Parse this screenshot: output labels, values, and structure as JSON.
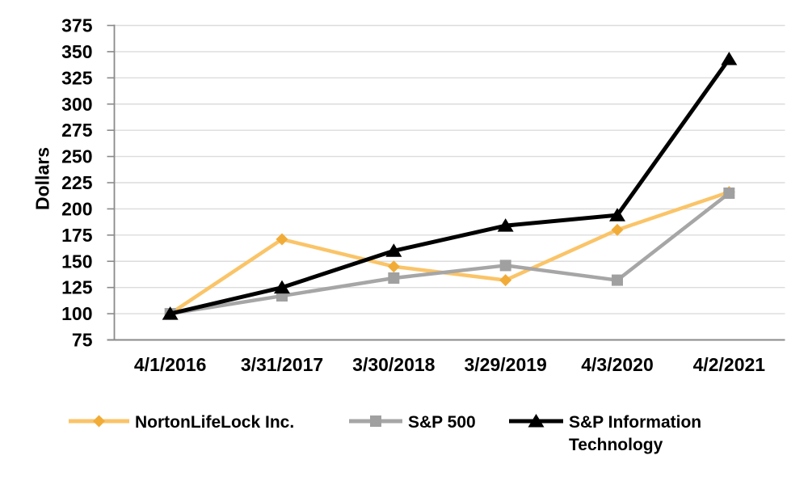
{
  "chart_data": {
    "type": "line",
    "title": "",
    "xlabel": "",
    "ylabel": "Dollars",
    "x_labels": [
      "4/1/2016",
      "3/31/2017",
      "3/30/2018",
      "3/29/2019",
      "4/3/2020",
      "4/2/2021"
    ],
    "y_ticks": [
      75,
      100,
      125,
      150,
      175,
      200,
      225,
      250,
      275,
      300,
      325,
      350,
      375
    ],
    "ylim": [
      75,
      375
    ],
    "grid": "horizontal-only",
    "legend_position": "bottom",
    "series": [
      {
        "name": "NortonLifeLock Inc.",
        "name_lines": [
          "NortonLifeLock Inc."
        ],
        "marker": "diamond",
        "color": "#FAC468",
        "marker_color": "#F1AC38",
        "values": [
          100,
          171,
          145,
          132,
          180,
          216
        ]
      },
      {
        "name": "S&P 500",
        "name_lines": [
          "S&P 500"
        ],
        "marker": "square",
        "color": "#A6A6A6",
        "marker_color": "#A0A0A0",
        "values": [
          100,
          117,
          134,
          146,
          132,
          215
        ]
      },
      {
        "name": "S&P Information Technology",
        "name_lines": [
          "S&P Information",
          "Technology"
        ],
        "marker": "triangle",
        "color": "#000000",
        "marker_color": "#000000",
        "values": [
          100,
          125,
          160,
          184,
          194,
          343
        ]
      }
    ],
    "colors": {
      "gridline": "#DCDCDC",
      "axis": "#8A8A8A",
      "text": "#000000",
      "background": "#FFFFFF"
    }
  }
}
